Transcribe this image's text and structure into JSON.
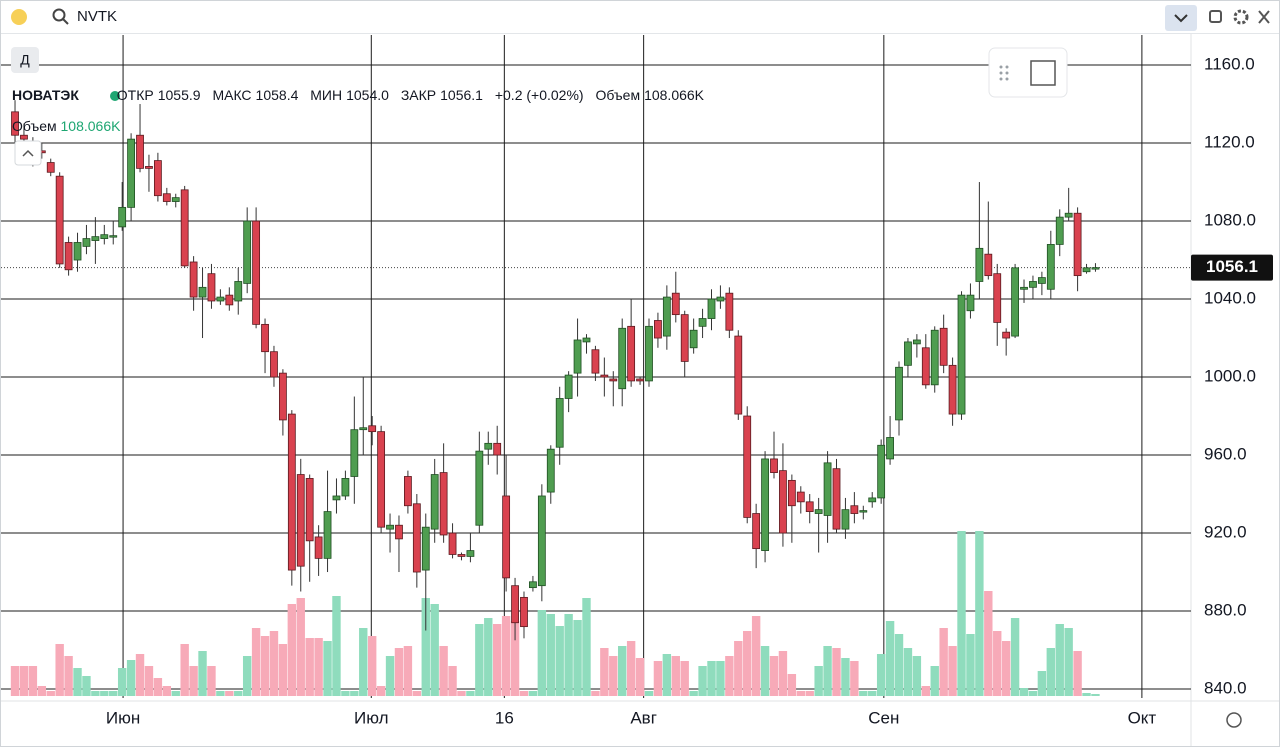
{
  "ui": {
    "search": "NVTK",
    "period_button": "Д"
  },
  "legend": {
    "ticker": "НОВАТЭК",
    "open_label": "ОТКР",
    "open": "1055.9",
    "high_label": "МАКС",
    "high": "1058.4",
    "low_label": "МИН",
    "low": "1054.0",
    "close_label": "ЗАКР",
    "close": "1056.1",
    "change": "+0.2 (+0.02%)",
    "volume_label": "Объем",
    "volume": "108.066K"
  },
  "volume_legend": {
    "label": "Объем",
    "value": "108.066K"
  },
  "chart_data": {
    "type": "candlestick",
    "up_color": "#4f9d50",
    "down_color": "#d9424f",
    "up_volume_color": "#8fdcbd",
    "down_volume_color": "#f7aab8",
    "grid": true,
    "ylim": [
      835.4,
      1175.4
    ],
    "yticks": [
      {
        "value": 840,
        "label": "840.0"
      },
      {
        "value": 880,
        "label": "880.0"
      },
      {
        "value": 920,
        "label": "920.0"
      },
      {
        "value": 960,
        "label": "960.0"
      },
      {
        "value": 1000,
        "label": "1000.0"
      },
      {
        "value": 1040,
        "label": "1040.0"
      },
      {
        "value": 1080,
        "label": "1080.0"
      },
      {
        "value": 1120,
        "label": "1120.0"
      },
      {
        "value": 1160,
        "label": "1160.0"
      }
    ],
    "xlim": [
      -1.57,
      131.7
    ],
    "xticks": [
      {
        "value": 12.1,
        "label": "Июн"
      },
      {
        "value": 39.9,
        "label": "Июл"
      },
      {
        "value": 54.8,
        "label": "16"
      },
      {
        "value": 70.4,
        "label": "Авг"
      },
      {
        "value": 97.3,
        "label": "Сен"
      },
      {
        "value": 126.2,
        "label": "Окт"
      }
    ],
    "open": [
      1136,
      1124,
      1120,
      1116,
      1110,
      1103,
      1069,
      1060,
      1067,
      1070,
      1071,
      1072,
      1077,
      1087,
      1124,
      1108,
      1111,
      1094,
      1090,
      1096,
      1059,
      1041,
      1053,
      1039,
      1042,
      1039,
      1048,
      1080,
      1027,
      1013,
      1002,
      981,
      950,
      948,
      918,
      907,
      937,
      939,
      949,
      973,
      975,
      972,
      922,
      924,
      949,
      935,
      901,
      922,
      951,
      920,
      909,
      908,
      924,
      963,
      966,
      939,
      893,
      887,
      892,
      893,
      941,
      964,
      989,
      1002,
      1018,
      1014,
      1001,
      999,
      994,
      1026,
      999,
      998,
      1029,
      1021,
      1043,
      1032,
      1015,
      1026,
      1030,
      1039,
      1043,
      1021,
      980,
      930,
      911,
      958,
      952,
      947,
      941,
      936,
      930,
      929,
      953,
      922,
      934,
      931,
      936,
      938,
      958,
      978,
      1006,
      1017,
      1015,
      996,
      1025,
      1006,
      981,
      1034,
      1049,
      1063,
      1053,
      1023,
      1021,
      1045,
      1046,
      1048,
      1045,
      1068,
      1082,
      1084,
      1054,
      1055.9
    ],
    "high": [
      1142,
      1130,
      1123,
      1120,
      1112,
      1105,
      1072,
      1074,
      1078,
      1082,
      1078,
      1080,
      1100,
      1125,
      1140,
      1114,
      1115,
      1097,
      1094,
      1098,
      1062,
      1056,
      1058,
      1045,
      1046,
      1056,
      1087,
      1087,
      1030,
      1016,
      1004,
      983,
      958,
      950,
      924,
      952,
      948,
      952,
      990,
      1000,
      980,
      975,
      930,
      929,
      952,
      940,
      930,
      958,
      966,
      925,
      910,
      920,
      972,
      972,
      975,
      960,
      897,
      890,
      898,
      945,
      965,
      995,
      1003,
      1030,
      1022,
      1016,
      1010,
      1003,
      1030,
      1040,
      1000,
      1030,
      1033,
      1047,
      1054,
      1034,
      1030,
      1035,
      1045,
      1047,
      1046,
      1024,
      985,
      935,
      962,
      972,
      966,
      950,
      944,
      940,
      938,
      962,
      958,
      938,
      941,
      934,
      941,
      968,
      980,
      1008,
      1020,
      1022,
      1022,
      1026,
      1032,
      1010,
      1044,
      1048,
      1100,
      1090,
      1058,
      1025,
      1058,
      1050,
      1052,
      1054,
      1075,
      1086,
      1097,
      1087,
      1058,
      1058.4
    ],
    "low": [
      1120,
      1118,
      1108,
      1112,
      1103,
      1056,
      1052,
      1054,
      1063,
      1058,
      1068,
      1068,
      1075,
      1080,
      1105,
      1095,
      1090,
      1088,
      1087,
      1056,
      1034,
      1020,
      1035,
      1037,
      1034,
      1032,
      1043,
      1025,
      1002,
      995,
      970,
      893,
      890,
      895,
      898,
      900,
      930,
      937,
      935,
      960,
      965,
      920,
      910,
      900,
      930,
      892,
      870,
      915,
      915,
      907,
      906,
      905,
      920,
      955,
      950,
      890,
      865,
      866,
      890,
      885,
      935,
      955,
      982,
      990,
      1012,
      998,
      990,
      985,
      985,
      995,
      996,
      995,
      1015,
      1014,
      1028,
      1000,
      1012,
      1020,
      1024,
      1035,
      1020,
      978,
      925,
      902,
      905,
      948,
      913,
      915,
      930,
      925,
      910,
      915,
      920,
      917,
      925,
      927,
      933,
      935,
      955,
      970,
      1000,
      1010,
      994,
      992,
      1002,
      975,
      978,
      1030,
      1040,
      1050,
      1016,
      1011,
      1020,
      1038,
      1040,
      1042,
      1040,
      1062,
      1080,
      1044,
      1053,
      1054
    ],
    "close": [
      1124,
      1122,
      1111,
      1115,
      1105,
      1058,
      1055,
      1069,
      1071,
      1072,
      1073,
      1072.5,
      1087,
      1122,
      1107,
      1107,
      1093,
      1090,
      1092,
      1057,
      1041,
      1046,
      1039,
      1041,
      1037,
      1049,
      1080,
      1027,
      1013,
      1000,
      978,
      901,
      903,
      916,
      907,
      931,
      939,
      948,
      973,
      974,
      972,
      923,
      924,
      917,
      934,
      900,
      923,
      950,
      919,
      909,
      908,
      911,
      962,
      966,
      960,
      897,
      874,
      872,
      895,
      939,
      963,
      989,
      1001,
      1019,
      1020,
      1002,
      1000,
      998,
      1025,
      998,
      998,
      1026,
      1020,
      1041,
      1032,
      1008,
      1024,
      1030,
      1040,
      1041,
      1024,
      981,
      928,
      912,
      958,
      951,
      920,
      934,
      936,
      931,
      932,
      956,
      922,
      932,
      930,
      931.5,
      938,
      965,
      969,
      1005,
      1018,
      1019,
      996,
      1024,
      1006,
      981,
      1042,
      1042,
      1066,
      1052,
      1028,
      1020,
      1056,
      1046,
      1049,
      1051,
      1068,
      1082,
      1084,
      1052,
      1056,
      1056.1
    ],
    "volume": [
      1620,
      1620,
      1620,
      540,
      270,
      2808,
      2160,
      1512,
      1080,
      270,
      270,
      270,
      1512,
      1944,
      2268,
      1620,
      972,
      540,
      270,
      2808,
      1620,
      2430,
      1620,
      270,
      270,
      270,
      2160,
      3672,
      3240,
      3510,
      2808,
      4968,
      5292,
      3132,
      3132,
      2970,
      5400,
      270,
      270,
      3672,
      3240,
      540,
      2160,
      2592,
      2700,
      270,
      5292,
      4968,
      2700,
      1620,
      270,
      270,
      3888,
      4212,
      3888,
      4320,
      4050,
      270,
      270,
      4644,
      4428,
      3780,
      4428,
      4104,
      5292,
      270,
      2592,
      2160,
      2700,
      2970,
      2052,
      270,
      1890,
      2268,
      2160,
      1890,
      270,
      1620,
      1890,
      1890,
      2160,
      2970,
      3510,
      4320,
      2700,
      2160,
      2430,
      1188,
      270,
      270,
      1620,
      2700,
      2592,
      2052,
      1890,
      270,
      270,
      2268,
      4050,
      3348,
      2592,
      2160,
      540,
      1620,
      3672,
      2700,
      8910,
      3348,
      8910,
      5670,
      3510,
      2970,
      4212,
      432,
      270,
      1350,
      2592,
      3888,
      3672,
      2430,
      162,
      108.066
    ]
  }
}
